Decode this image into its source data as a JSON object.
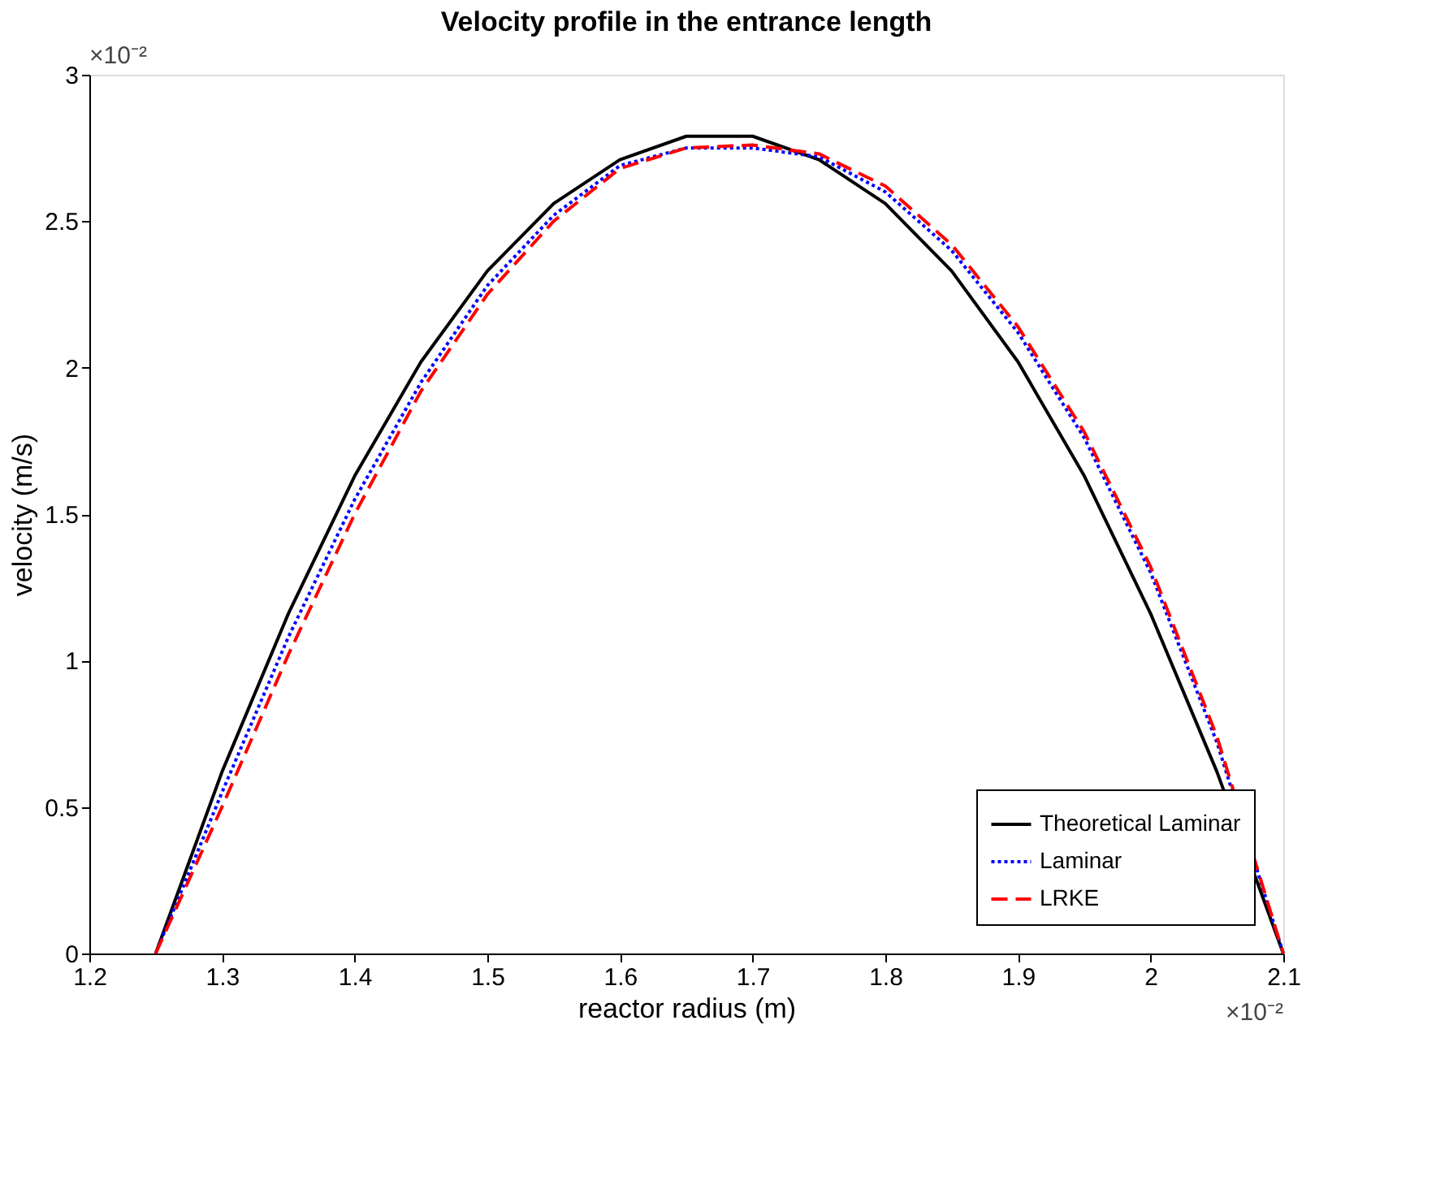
{
  "chart_data": {
    "type": "line",
    "title": "Velocity profile in the entrance length",
    "xlabel": "reactor radius (m)",
    "ylabel": "velocity (m/s)",
    "annotations": [
      "×10⁻²",
      "×10⁻²"
    ],
    "x": [
      1.25,
      1.3,
      1.35,
      1.4,
      1.45,
      1.5,
      1.55,
      1.6,
      1.65,
      1.7,
      1.75,
      1.8,
      1.85,
      1.9,
      1.95,
      2.0,
      2.05,
      2.1
    ],
    "series": [
      {
        "name": "Theoretical Laminar",
        "color": "#000000",
        "line_style": "solid",
        "values": [
          0,
          0.62,
          1.16,
          1.63,
          2.02,
          2.33,
          2.56,
          2.71,
          2.79,
          2.79,
          2.71,
          2.56,
          2.33,
          2.02,
          1.63,
          1.16,
          0.62,
          0
        ]
      },
      {
        "name": "Laminar",
        "color": "#0000ff",
        "line_style": "dotted",
        "values": [
          0,
          0.55,
          1.08,
          1.55,
          1.95,
          2.28,
          2.52,
          2.69,
          2.75,
          2.75,
          2.72,
          2.6,
          2.4,
          2.12,
          1.76,
          1.3,
          0.72,
          0
        ]
      },
      {
        "name": "LRKE",
        "color": "#ff0000",
        "line_style": "dashed",
        "values": [
          0,
          0.5,
          1.02,
          1.5,
          1.92,
          2.25,
          2.5,
          2.68,
          2.75,
          2.76,
          2.73,
          2.62,
          2.42,
          2.14,
          1.78,
          1.32,
          0.74,
          0
        ]
      }
    ],
    "xlim": [
      1.2,
      2.1
    ],
    "xticks": [
      1.2,
      1.3,
      1.4,
      1.5,
      1.6,
      1.7,
      1.8,
      1.9,
      2,
      2.1
    ],
    "ylim": [
      0,
      3
    ],
    "yticks": [
      0,
      0.5,
      1,
      1.5,
      2,
      2.5,
      3
    ],
    "grid": false,
    "legend": "bottom right",
    "marker": "none"
  }
}
